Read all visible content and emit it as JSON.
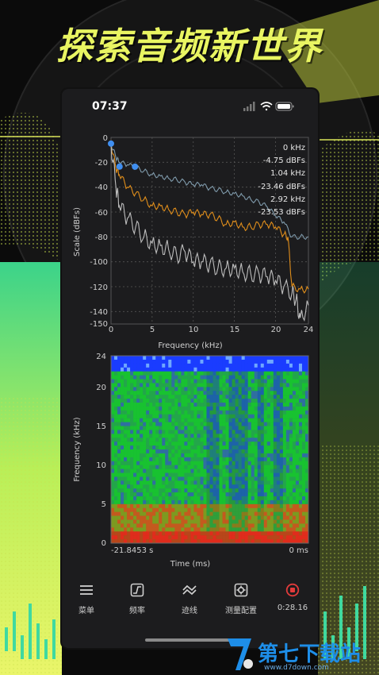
{
  "headline": "探索音频新世界",
  "status_bar": {
    "time": "07:37"
  },
  "spectrum": {
    "title": "",
    "xlabel": "Frequency (kHz)",
    "ylabel": "Scale (dBFs)",
    "x_ticks": [
      "0",
      "5",
      "10",
      "15",
      "20",
      "24"
    ],
    "y_ticks": [
      "0",
      "-20",
      "-40",
      "-60",
      "-80",
      "-100",
      "-120",
      "-140",
      "-150"
    ],
    "readouts": [
      "0 kHz",
      "-4.75 dBFs",
      "1.04 kHz",
      "-23.46 dBFs",
      "2.92 kHz",
      "-23.53 dBFs"
    ],
    "colors": {
      "line1": "#7f9aab",
      "line2": "#e08e1b",
      "line3": "#bdbdbd",
      "marker": "#3f8ef0",
      "grid": "#555555"
    }
  },
  "spectrogram": {
    "xlabel": "Time (ms)",
    "ylabel": "Frequency (kHz)",
    "y_ticks": [
      "24",
      "20",
      "15",
      "10",
      "5",
      "0"
    ],
    "time_start": "-21.8453 s",
    "time_end": "0 ms"
  },
  "chart_data": [
    {
      "type": "line",
      "xlabel": "Frequency (kHz)",
      "ylabel": "Scale (dBFs)",
      "xlim": [
        0,
        24
      ],
      "ylim": [
        -150,
        0
      ],
      "grid": true,
      "series": [
        {
          "x": [
            0,
            0.6,
            1,
            2,
            3,
            4,
            5,
            6,
            7,
            8,
            9,
            10,
            11,
            12,
            13,
            14,
            15,
            16,
            17,
            18,
            19,
            20,
            21,
            22,
            23,
            24
          ],
          "values": [
            -5,
            -16,
            -20,
            -22,
            -24,
            -27,
            -30,
            -31,
            -33,
            -34,
            -36,
            -38,
            -38,
            -41,
            -42,
            -44,
            -45,
            -47,
            -50,
            -52,
            -56,
            -63,
            -68,
            -80,
            -80,
            -80
          ]
        },
        {
          "x": [
            0,
            0.6,
            1,
            2,
            3,
            4,
            5,
            6,
            7,
            8,
            9,
            10,
            11,
            12,
            13,
            14,
            15,
            16,
            17,
            18,
            19,
            20,
            21,
            21.5,
            22,
            23,
            24
          ],
          "values": [
            -5,
            -25,
            -30,
            -40,
            -45,
            -50,
            -55,
            -55,
            -58,
            -60,
            -62,
            -60,
            -62,
            -62,
            -65,
            -70,
            -68,
            -72,
            -72,
            -70,
            -70,
            -72,
            -78,
            -80,
            -120,
            -122,
            -122
          ]
        },
        {
          "x": [
            0,
            0.6,
            1,
            2,
            3,
            4,
            5,
            6,
            7,
            8,
            9,
            10,
            11,
            12,
            13,
            14,
            15,
            16,
            17,
            18,
            19,
            20,
            21,
            22,
            22.5,
            23,
            24
          ],
          "values": [
            -5,
            -40,
            -55,
            -65,
            -72,
            -80,
            -85,
            -87,
            -90,
            -95,
            -92,
            -100,
            -100,
            -102,
            -105,
            -105,
            -105,
            -108,
            -110,
            -110,
            -112,
            -115,
            -120,
            -125,
            -130,
            -145,
            -135
          ]
        }
      ]
    },
    {
      "type": "heatmap",
      "xlabel": "Time (ms)",
      "ylabel": "Frequency (kHz)",
      "xlim": [
        -21.8453,
        0
      ],
      "ylim": [
        0,
        24
      ]
    }
  ],
  "tabbar": {
    "items": [
      {
        "label": "菜单",
        "icon": "menu-icon"
      },
      {
        "label": "频率",
        "icon": "frequency-icon"
      },
      {
        "label": "迹线",
        "icon": "trace-icon"
      },
      {
        "label": "测量配置",
        "icon": "settings-icon"
      },
      {
        "label": "0:28.16",
        "icon": "record-icon",
        "color": "#e23b3b"
      }
    ]
  },
  "watermark": {
    "brand": "第七下载站",
    "url": "www.d7down.com"
  }
}
